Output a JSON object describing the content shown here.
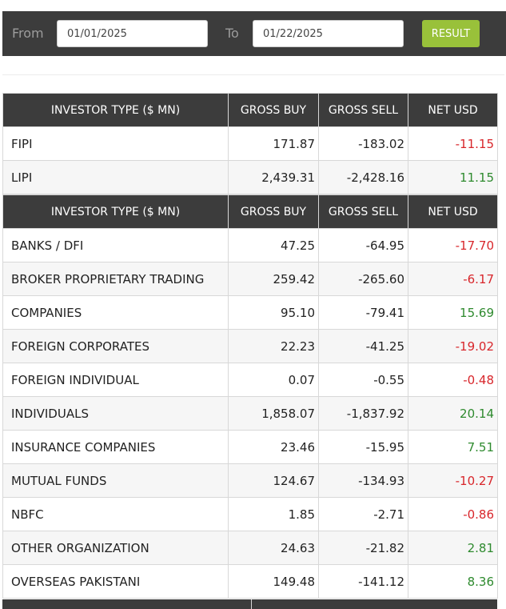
{
  "filter": {
    "from_label": "From",
    "from_value": "01/01/2025",
    "to_label": "To",
    "to_value": "01/22/2025",
    "result_label": "RESULT"
  },
  "colors": {
    "header_bg": "#3c3c3c",
    "button_green": "#99c13a",
    "negative": "#d8262b",
    "positive": "#2e8a2e"
  },
  "table1": {
    "headers": [
      "INVESTOR TYPE ($ MN)",
      "GROSS BUY",
      "GROSS SELL",
      "NET USD"
    ],
    "rows": [
      {
        "name": "FIPI",
        "buy": "171.87",
        "sell": "-183.02",
        "net": "-11.15"
      },
      {
        "name": "LIPI",
        "buy": "2,439.31",
        "sell": "-2,428.16",
        "net": "11.15"
      }
    ]
  },
  "table2": {
    "headers": [
      "INVESTOR TYPE ($ MN)",
      "GROSS BUY",
      "GROSS SELL",
      "NET USD"
    ],
    "rows": [
      {
        "name": "BANKS / DFI",
        "buy": "47.25",
        "sell": "-64.95",
        "net": "-17.70"
      },
      {
        "name": "BROKER PROPRIETARY TRADING",
        "buy": "259.42",
        "sell": "-265.60",
        "net": "-6.17"
      },
      {
        "name": "COMPANIES",
        "buy": "95.10",
        "sell": "-79.41",
        "net": "15.69"
      },
      {
        "name": "FOREIGN CORPORATES",
        "buy": "22.23",
        "sell": "-41.25",
        "net": "-19.02"
      },
      {
        "name": "FOREIGN INDIVIDUAL",
        "buy": "0.07",
        "sell": "-0.55",
        "net": "-0.48"
      },
      {
        "name": "INDIVIDUALS",
        "buy": "1,858.07",
        "sell": "-1,837.92",
        "net": "20.14"
      },
      {
        "name": "INSURANCE COMPANIES",
        "buy": "23.46",
        "sell": "-15.95",
        "net": "7.51"
      },
      {
        "name": "MUTUAL FUNDS",
        "buy": "124.67",
        "sell": "-134.93",
        "net": "-10.27"
      },
      {
        "name": "NBFC",
        "buy": "1.85",
        "sell": "-2.71",
        "net": "-0.86"
      },
      {
        "name": "OTHER ORGANIZATION",
        "buy": "24.63",
        "sell": "-21.82",
        "net": "2.81"
      },
      {
        "name": "OVERSEAS PAKISTANI",
        "buy": "149.48",
        "sell": "-141.12",
        "net": "8.36"
      }
    ]
  }
}
